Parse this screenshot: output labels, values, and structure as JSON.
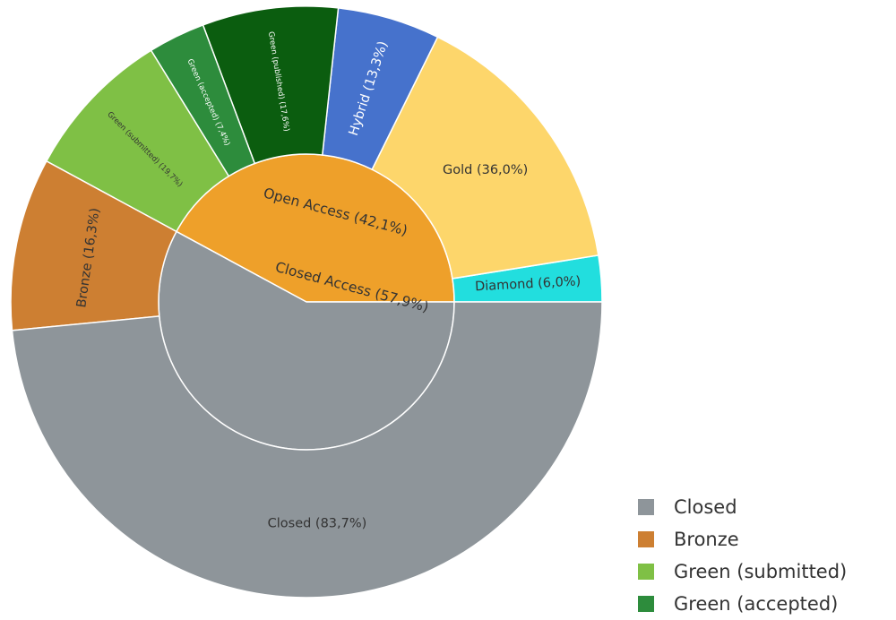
{
  "chart_data": {
    "type": "sunburst",
    "inner": [
      {
        "key": "open",
        "label": "Open Access (42,1%)",
        "value": 42.1,
        "color": "#eea02a",
        "text_color": "#333333"
      },
      {
        "key": "closed",
        "label": "Closed Access (57,9%)",
        "value": 57.9,
        "color": "#8e959a",
        "text_color": "#333333"
      }
    ],
    "outer": [
      {
        "key": "hybrid",
        "parent": "open",
        "label": "Hybrid (13,3%)",
        "value": 13.3,
        "color": "#4672cc",
        "text_color": "#ffffff"
      },
      {
        "key": "gold",
        "parent": "open",
        "label": "Gold (36,0%)",
        "value": 36.0,
        "color": "#fdd66b",
        "text_color": "#333333"
      },
      {
        "key": "diamond",
        "parent": "open",
        "label": "Diamond (6,0%)",
        "value": 6.0,
        "color": "#22dede",
        "text_color": "#333333"
      },
      {
        "key": "bronze",
        "parent": "closed",
        "label": "Bronze (16,3%)",
        "value": 16.3,
        "color": "#cd7f32",
        "text_color": "#333333"
      },
      {
        "key": "green_submitted",
        "parent": "open",
        "label": "Green (submitted) (19,7%)",
        "value": 19.7,
        "color": "#7fc045",
        "text_color": "#333333"
      },
      {
        "key": "green_accepted",
        "parent": "open",
        "label": "Green (accepted) (7,4%)",
        "value": 7.4,
        "color": "#2d8c3c",
        "text_color": "#ffffff"
      },
      {
        "key": "green_published",
        "parent": "open",
        "label": "Green (published) (17,6%)",
        "value": 17.6,
        "color": "#0b5d0f",
        "text_color": "#ffffff"
      },
      {
        "key": "closed_outer",
        "parent": "closed",
        "label": "Closed (83,7%)",
        "value": 83.7,
        "color": "#8e959a",
        "text_color": "#333333"
      }
    ]
  },
  "legend": {
    "items": [
      {
        "label": "Closed",
        "color": "#8e959a"
      },
      {
        "label": "Bronze",
        "color": "#cd7f32"
      },
      {
        "label": "Green (submitted)",
        "color": "#7fc045"
      },
      {
        "label": "Green (accepted)",
        "color": "#2d8c3c"
      }
    ]
  }
}
